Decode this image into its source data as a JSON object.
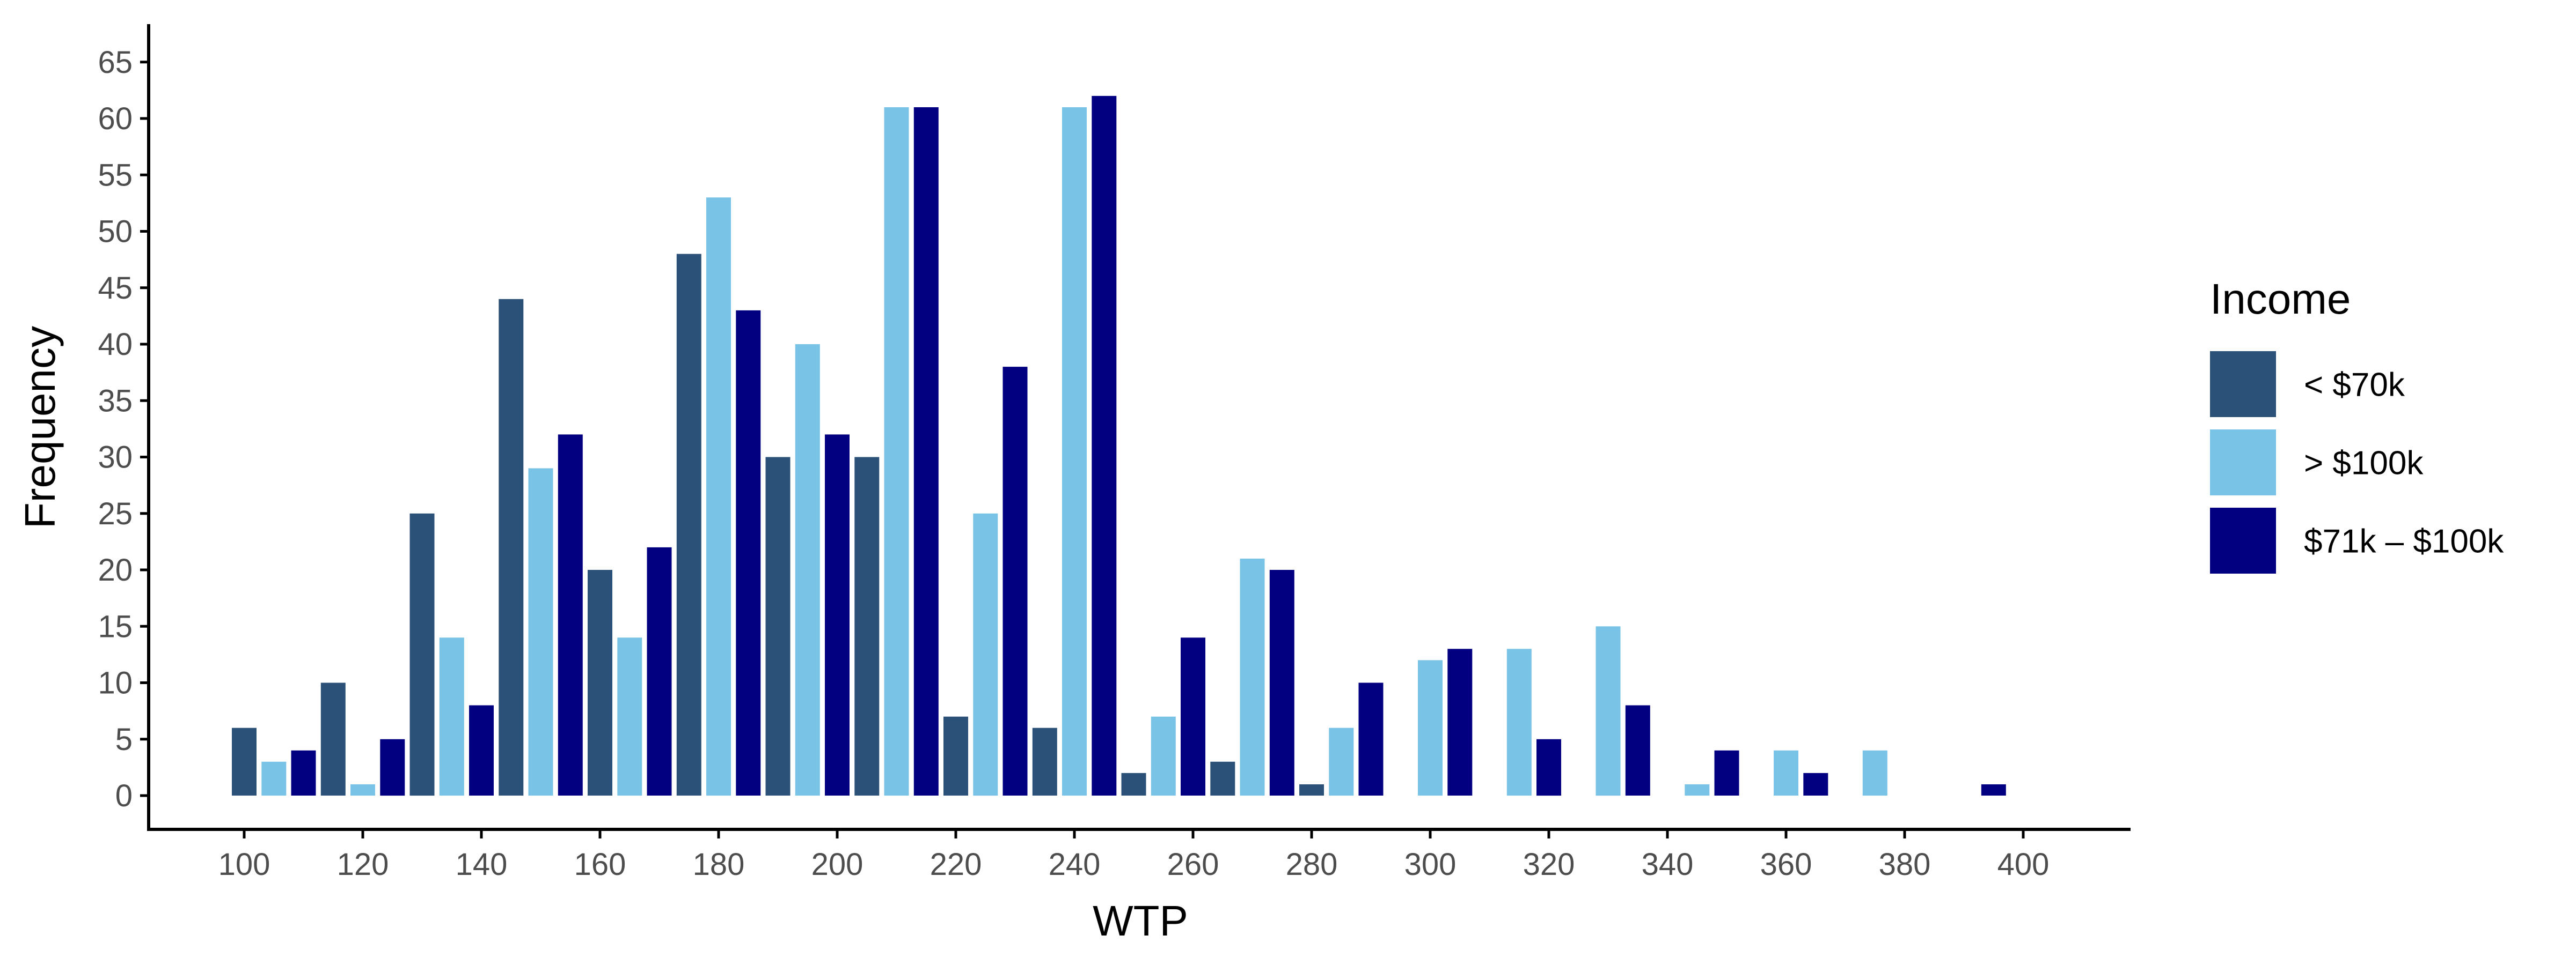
{
  "chart_data": {
    "type": "bar",
    "title": "",
    "xlabel": "WTP",
    "ylabel": "Frequency",
    "xlim": [
      80,
      420
    ],
    "ylim": [
      -3,
      68
    ],
    "x_ticks": [
      "100",
      "120",
      "140",
      "160",
      "180",
      "200",
      "220",
      "240",
      "260",
      "280",
      "300",
      "320",
      "340",
      "360",
      "380",
      "400"
    ],
    "y_ticks": [
      "0",
      "5",
      "10",
      "15",
      "20",
      "25",
      "30",
      "35",
      "40",
      "45",
      "50",
      "55",
      "60",
      "65"
    ],
    "grid": false,
    "legend": {
      "title": "Income",
      "position": "right"
    },
    "bin_centers": [
      105,
      120,
      135,
      150,
      165,
      180,
      195,
      210,
      225,
      240,
      255,
      270,
      285,
      300,
      315,
      330,
      345,
      360,
      375,
      390,
      405
    ],
    "series": [
      {
        "name": "< $70k",
        "color": "#2c5179",
        "values": [
          6,
          10,
          25,
          44,
          20,
          48,
          30,
          30,
          7,
          6,
          2,
          3,
          1,
          0,
          0,
          0,
          0,
          0,
          0,
          0,
          0
        ]
      },
      {
        "name": "> $100k",
        "color": "#79c3e6",
        "values": [
          3,
          1,
          14,
          29,
          14,
          53,
          40,
          61,
          25,
          61,
          7,
          21,
          6,
          12,
          13,
          15,
          1,
          4,
          4,
          0,
          0
        ]
      },
      {
        "name": "$71k – $100k",
        "color": "#020080",
        "values": [
          4,
          5,
          8,
          32,
          22,
          43,
          32,
          61,
          38,
          62,
          14,
          20,
          10,
          13,
          5,
          8,
          4,
          2,
          0,
          1,
          0
        ]
      }
    ]
  }
}
